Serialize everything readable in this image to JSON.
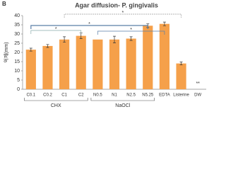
{
  "chart_data": {
    "type": "bar",
    "panel": "B",
    "title": "Agar diffusion- P. gingivalis",
    "y_label": "억제(mm)",
    "categories": [
      "C0.1",
      "C0.2",
      "C1",
      "C2",
      "N0.5",
      "N1",
      "N2.5",
      "N5.25",
      "EDTA",
      "Listerine",
      "DW"
    ],
    "values": [
      21.5,
      23.5,
      27,
      29,
      27,
      27,
      27.5,
      34.5,
      35.5,
      14,
      0
    ],
    "errors": [
      0.8,
      0.8,
      1.5,
      1.5,
      0,
      1.8,
      1,
      1,
      1,
      0.8,
      0
    ],
    "color": "#f5a04a",
    "groups": [
      "CHX",
      "NaOCl"
    ],
    "annotations": [
      "*",
      "*",
      "*",
      "*",
      "**"
    ],
    "ylim": [
      0,
      40
    ],
    "yticks": [
      0,
      5,
      10,
      15,
      20,
      25,
      30,
      35,
      40
    ],
    "grid": false
  }
}
